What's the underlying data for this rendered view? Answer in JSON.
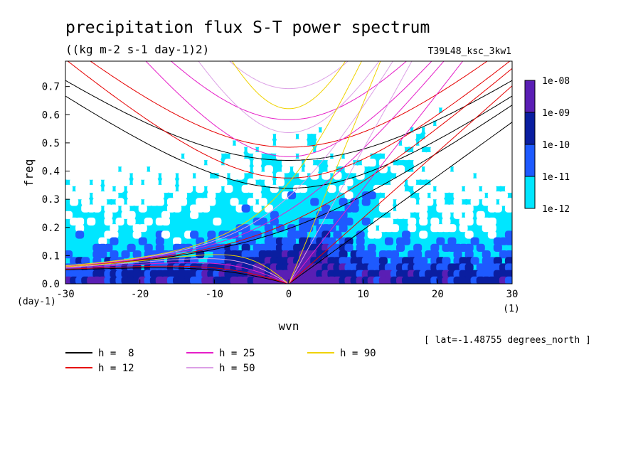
{
  "chart_data": {
    "type": "heatmap",
    "title": "precipitation flux S-T power spectrum",
    "subtitle": "((kg m-2 s-1 day-1)2)",
    "run_label": "T39L48_ksc_3kw1",
    "xlabel": "wvn",
    "ylabel": "freq",
    "x_unit": "(1)",
    "y_unit": "(day-1)",
    "xlim": [
      -30,
      30
    ],
    "ylim": [
      0,
      0.79
    ],
    "x_ticks": [
      -30,
      -20,
      -10,
      0,
      10,
      20,
      30
    ],
    "y_ticks": [
      0.0,
      0.1,
      0.2,
      0.3,
      0.4,
      0.5,
      0.6,
      0.7
    ],
    "y_tick_labels": [
      "0.0",
      "0.1",
      "0.2",
      "0.3",
      "0.4",
      "0.5",
      "0.6",
      "0.7"
    ],
    "footer_note": "[ lat=-1.48755 degrees_north ]",
    "colorbar": {
      "levels": [
        "1e-08",
        "1e-09",
        "1e-10",
        "1e-11",
        "1e-12"
      ],
      "colors": [
        "#5a1eb4",
        "#0a1ea0",
        "#1e5aff",
        "#00e6ff"
      ]
    },
    "dispersion_curves": [
      {
        "name": "h =  8",
        "h": 8,
        "color": "#000000"
      },
      {
        "name": "h = 12",
        "h": 12,
        "color": "#e60000"
      },
      {
        "name": "h = 25",
        "h": 25,
        "color": "#e61ec8"
      },
      {
        "name": "h = 50",
        "h": 50,
        "color": "#dca0e6"
      },
      {
        "name": "h = 90",
        "h": 90,
        "color": "#f0d200"
      }
    ]
  }
}
